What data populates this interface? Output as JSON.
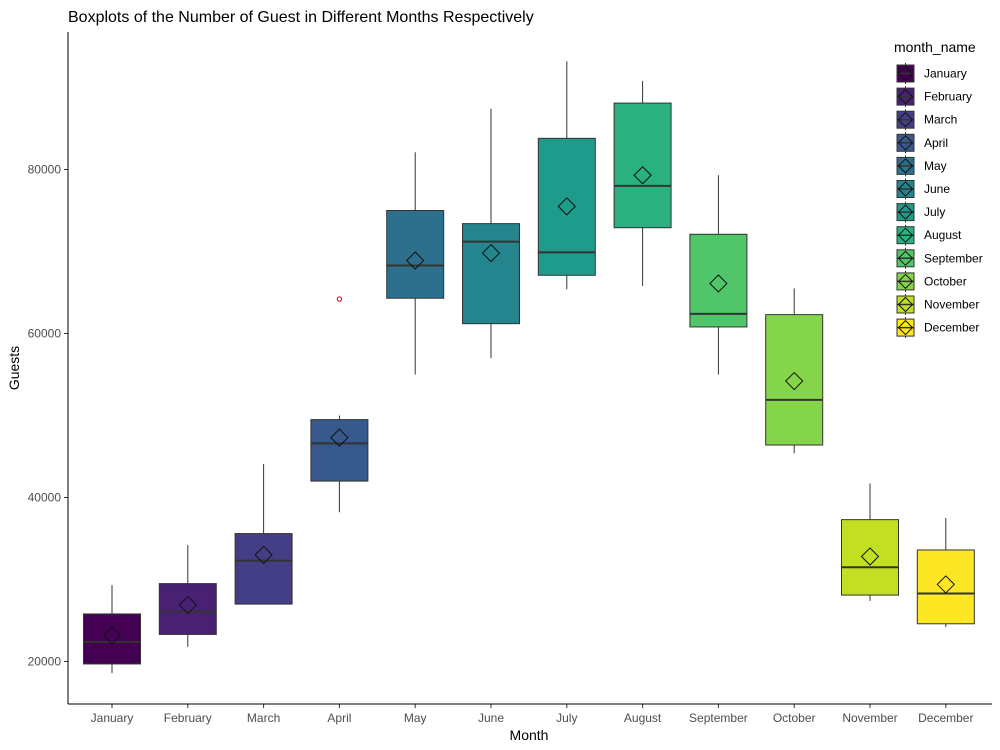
{
  "chart_data": {
    "type": "boxplot",
    "title": "Boxplots of the Number of Guest in Different Months Respectively",
    "xlabel": "Month",
    "ylabel": "Guests",
    "ylim": [
      15000,
      96000
    ],
    "yticks": [
      20000,
      40000,
      60000,
      80000
    ],
    "ytick_labels": [
      "20000",
      "40000",
      "60000",
      "80000"
    ],
    "grid": false,
    "legend": {
      "title": "month_name",
      "position": "right"
    },
    "categories": [
      "January",
      "February",
      "March",
      "April",
      "May",
      "June",
      "July",
      "August",
      "September",
      "October",
      "November",
      "December"
    ],
    "colors": [
      "#440154",
      "#482173",
      "#433E85",
      "#38598C",
      "#2D708E",
      "#25858E",
      "#1E9B8A",
      "#2BB07F",
      "#51C56A",
      "#85D54A",
      "#C2DF23",
      "#FDE725"
    ],
    "boxes": [
      {
        "min": 18600,
        "q1": 19700,
        "median": 22400,
        "q3": 25800,
        "max": 29300,
        "mean": 23200,
        "outliers": []
      },
      {
        "min": 21800,
        "q1": 23300,
        "median": 26100,
        "q3": 29500,
        "max": 34200,
        "mean": 26900,
        "outliers": []
      },
      {
        "min": 27000,
        "q1": 27000,
        "median": 32300,
        "q3": 35600,
        "max": 44100,
        "mean": 33000,
        "outliers": []
      },
      {
        "min": 38200,
        "q1": 42000,
        "median": 46600,
        "q3": 49500,
        "max": 50000,
        "mean": 47300,
        "outliers": [
          64200
        ]
      },
      {
        "min": 55000,
        "q1": 64300,
        "median": 68300,
        "q3": 75000,
        "max": 82100,
        "mean": 68900,
        "outliers": []
      },
      {
        "min": 57000,
        "q1": 61200,
        "median": 71200,
        "q3": 73400,
        "max": 87400,
        "mean": 69800,
        "outliers": []
      },
      {
        "min": 65400,
        "q1": 67100,
        "median": 69900,
        "q3": 83800,
        "max": 93200,
        "mean": 75500,
        "outliers": []
      },
      {
        "min": 65800,
        "q1": 72900,
        "median": 78000,
        "q3": 88100,
        "max": 90800,
        "mean": 79300,
        "outliers": []
      },
      {
        "min": 55000,
        "q1": 60800,
        "median": 62400,
        "q3": 72100,
        "max": 79300,
        "mean": 66100,
        "outliers": []
      },
      {
        "min": 45400,
        "q1": 46400,
        "median": 51900,
        "q3": 62300,
        "max": 65500,
        "mean": 54200,
        "outliers": []
      },
      {
        "min": 27400,
        "q1": 28100,
        "median": 31500,
        "q3": 37300,
        "max": 41700,
        "mean": 32800,
        "outliers": []
      },
      {
        "min": 24200,
        "q1": 24600,
        "median": 28300,
        "q3": 33600,
        "max": 37500,
        "mean": 29400,
        "outliers": []
      }
    ]
  }
}
